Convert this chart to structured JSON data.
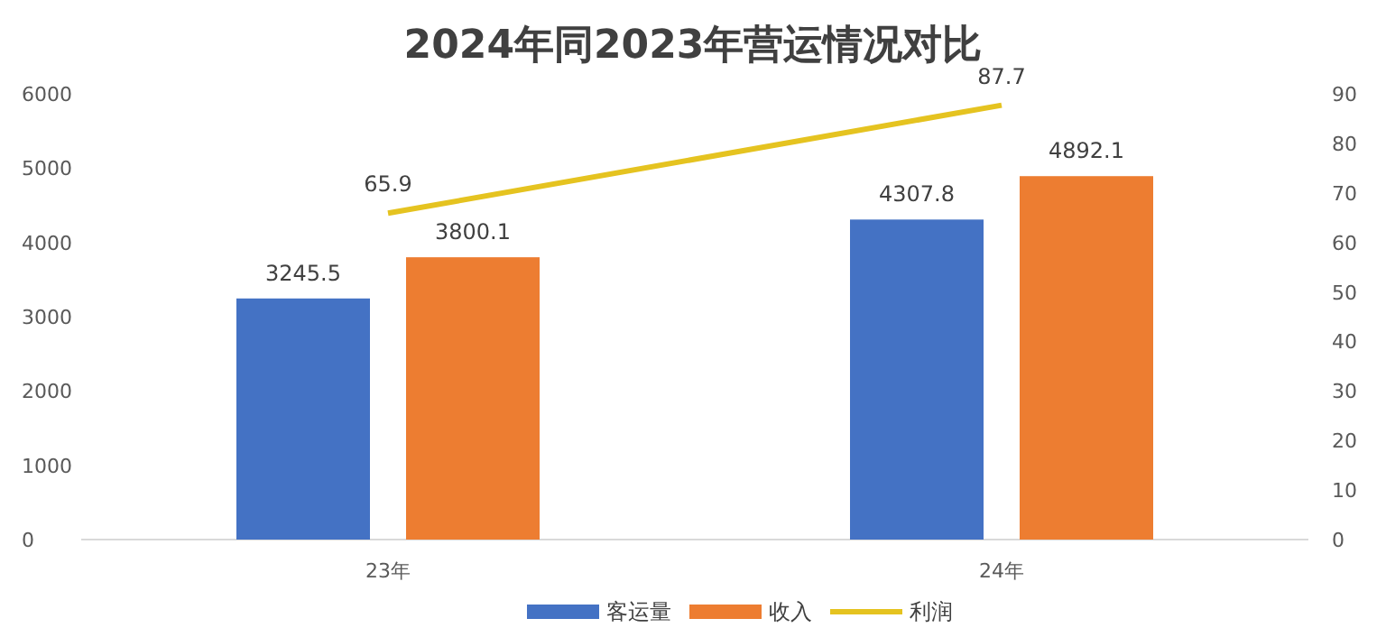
{
  "chart_data": {
    "type": "bar",
    "title": "2024年同2023年营运情况对比",
    "categories": [
      "23年",
      "24年"
    ],
    "series": [
      {
        "name": "客运量",
        "color": "#4472c4",
        "values": [
          3245.5,
          4307.8
        ]
      },
      {
        "name": "收入",
        "color": "#ed7d31",
        "values": [
          3800.1,
          4892.1
        ]
      },
      {
        "name": "利润",
        "color": "#e5c320",
        "type": "line",
        "axis": "y2",
        "values": [
          65.9,
          87.7
        ]
      }
    ],
    "ylim": [
      0,
      6000
    ],
    "yticks": [
      0,
      1000,
      2000,
      3000,
      4000,
      5000,
      6000
    ],
    "y2lim": [
      0,
      90
    ],
    "y2ticks": [
      0,
      10,
      20,
      30,
      40,
      50,
      60,
      70,
      80,
      90
    ],
    "data_labels": true,
    "legend": "bottom",
    "marker": "none"
  }
}
